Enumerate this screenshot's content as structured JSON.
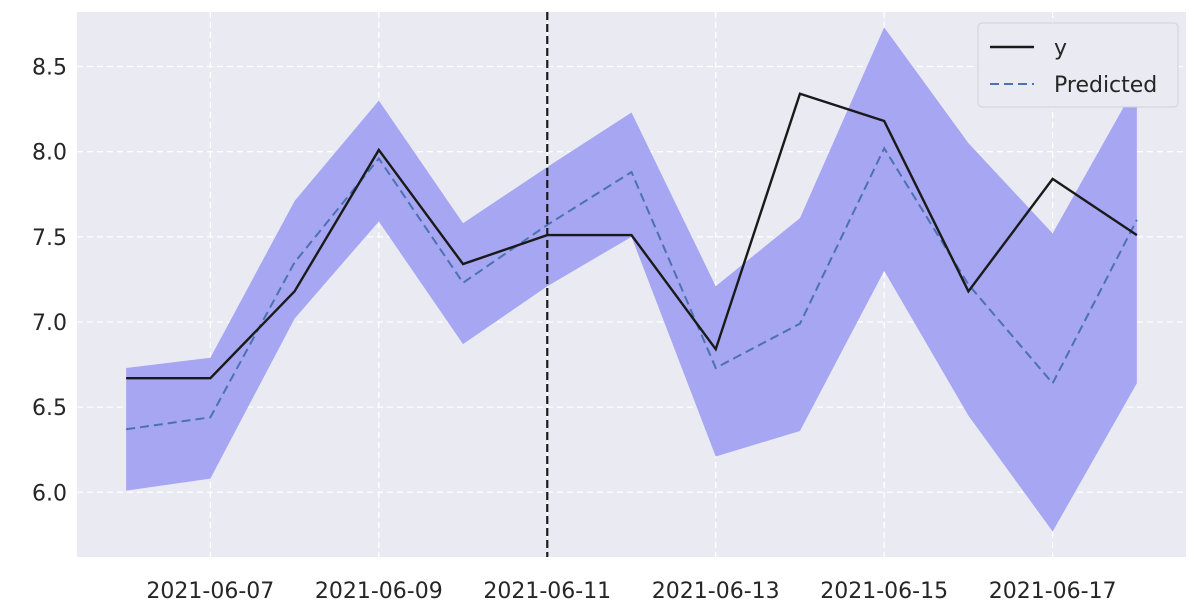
{
  "chart_data": {
    "type": "line",
    "title": "",
    "xlabel": "",
    "ylabel": "",
    "x": [
      "2021-06-06",
      "2021-06-07",
      "2021-06-08",
      "2021-06-09",
      "2021-06-10",
      "2021-06-11",
      "2021-06-12",
      "2021-06-13",
      "2021-06-14",
      "2021-06-15",
      "2021-06-16",
      "2021-06-17",
      "2021-06-18"
    ],
    "series": [
      {
        "name": "y",
        "style": "solid",
        "color": "#1a1a1a",
        "values": [
          6.67,
          6.67,
          7.18,
          8.01,
          7.34,
          7.51,
          7.51,
          6.84,
          8.34,
          8.18,
          7.18,
          7.84,
          7.51
        ]
      },
      {
        "name": "Predicted",
        "style": "dashed",
        "color": "#4c72b0",
        "values": [
          6.37,
          6.44,
          7.35,
          7.96,
          7.23,
          7.57,
          7.88,
          6.73,
          6.99,
          8.02,
          7.22,
          6.64,
          7.6
        ]
      }
    ],
    "interval": {
      "color": "#a6a6f2",
      "lower": [
        6.01,
        6.08,
        7.02,
        7.59,
        6.87,
        7.21,
        7.5,
        6.21,
        6.36,
        7.3,
        6.45,
        5.77,
        6.64
      ],
      "upper": [
        6.73,
        6.79,
        7.71,
        8.3,
        7.58,
        7.91,
        8.23,
        7.21,
        7.61,
        8.73,
        8.05,
        7.52,
        8.4
      ]
    },
    "vline": {
      "x": "2021-06-11",
      "style": "dashed",
      "color": "#1a1a1a"
    },
    "xticks": [
      "2021-06-07",
      "2021-06-09",
      "2021-06-11",
      "2021-06-13",
      "2021-06-15",
      "2021-06-17"
    ],
    "yticks": [
      6.0,
      6.5,
      7.0,
      7.5,
      8.0,
      8.5
    ],
    "ytick_labels": [
      "6.0",
      "6.5",
      "7.0",
      "7.5",
      "8.0",
      "8.5"
    ],
    "xlim": [
      "2021-06-05T10:00",
      "2021-06-18T14:00"
    ],
    "ylim": [
      5.62,
      8.82
    ],
    "grid": true,
    "grid_style": "dashed",
    "plot_background": "#eaeaf2",
    "legend_position": "top-right"
  }
}
